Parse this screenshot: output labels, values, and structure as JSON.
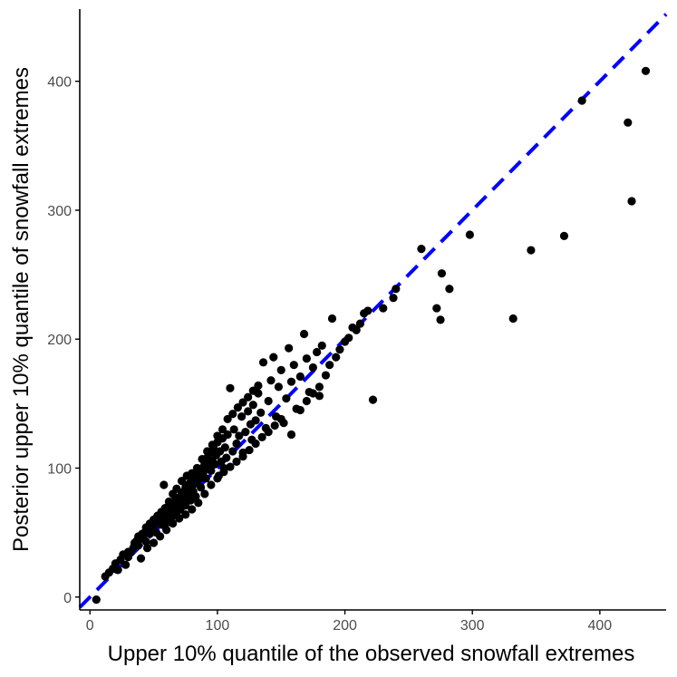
{
  "colors": {
    "points": "#000000",
    "reference_line": "#0000ff",
    "axis": "#000000",
    "tick_text": "#4d4d4d",
    "background": "#ffffff"
  },
  "chart_data": {
    "type": "scatter",
    "title": "",
    "xlabel": "Upper 10% quantile of the observed snowfall extremes",
    "ylabel": "Posterior upper 10% quantile of snowfall extremes",
    "xlim": [
      -8,
      452
    ],
    "ylim": [
      -10,
      456
    ],
    "xticks": [
      0,
      100,
      200,
      300,
      400
    ],
    "yticks": [
      0,
      100,
      200,
      300,
      400
    ],
    "grid": false,
    "legend": "none",
    "reference_line": {
      "slope": 1,
      "intercept": 0,
      "style": "dashed",
      "color": "blue"
    },
    "series": [
      {
        "points": [
          [
            12,
            16
          ],
          [
            15,
            19
          ],
          [
            18,
            22
          ],
          [
            20,
            26
          ],
          [
            22,
            21
          ],
          [
            24,
            29
          ],
          [
            26,
            33
          ],
          [
            28,
            25
          ],
          [
            30,
            31
          ],
          [
            32,
            35
          ],
          [
            34,
            38
          ],
          [
            35,
            41
          ],
          [
            37,
            44
          ],
          [
            38,
            40
          ],
          [
            40,
            47
          ],
          [
            42,
            45
          ],
          [
            43,
            50
          ],
          [
            44,
            43
          ],
          [
            46,
            52
          ],
          [
            47,
            49
          ],
          [
            48,
            55
          ],
          [
            50,
            53
          ],
          [
            51,
            58
          ],
          [
            52,
            50
          ],
          [
            54,
            60
          ],
          [
            55,
            57
          ],
          [
            56,
            63
          ],
          [
            57,
            56
          ],
          [
            58,
            61
          ],
          [
            60,
            66
          ],
          [
            61,
            58
          ],
          [
            62,
            64
          ],
          [
            63,
            70
          ],
          [
            64,
            62
          ],
          [
            65,
            67
          ],
          [
            66,
            73
          ],
          [
            67,
            69
          ],
          [
            68,
            65
          ],
          [
            69,
            76
          ],
          [
            70,
            72
          ],
          [
            71,
            68
          ],
          [
            72,
            78
          ],
          [
            73,
            74
          ],
          [
            74,
            81
          ],
          [
            75,
            71
          ],
          [
            76,
            77
          ],
          [
            77,
            84
          ],
          [
            78,
            80
          ],
          [
            79,
            75
          ],
          [
            80,
            86
          ],
          [
            81,
            82
          ],
          [
            82,
            90
          ],
          [
            83,
            78
          ],
          [
            84,
            88
          ],
          [
            85,
            95
          ],
          [
            86,
            92
          ],
          [
            87,
            85
          ],
          [
            88,
            100
          ],
          [
            89,
            97
          ],
          [
            90,
            104
          ],
          [
            91,
            92
          ],
          [
            92,
            108
          ],
          [
            93,
            101
          ],
          [
            94,
            112
          ],
          [
            95,
            98
          ],
          [
            96,
            106
          ],
          [
            97,
            115
          ],
          [
            98,
            103
          ],
          [
            99,
            110
          ],
          [
            100,
            120
          ],
          [
            101,
            94
          ],
          [
            102,
            113
          ],
          [
            103,
            105
          ],
          [
            104,
            123
          ],
          [
            105,
            100
          ],
          [
            106,
            116
          ],
          [
            107,
            108
          ],
          [
            108,
            126
          ],
          [
            110,
            162
          ],
          [
            112,
            113
          ],
          [
            113,
            130
          ],
          [
            115,
            119
          ],
          [
            117,
            125
          ],
          [
            119,
            140
          ],
          [
            120,
            112
          ],
          [
            122,
            128
          ],
          [
            124,
            144
          ],
          [
            126,
            134
          ],
          [
            127,
            122
          ],
          [
            128,
            149
          ],
          [
            130,
            137
          ],
          [
            132,
            158
          ],
          [
            134,
            143
          ],
          [
            136,
            182
          ],
          [
            138,
            131
          ],
          [
            140,
            152
          ],
          [
            142,
            168
          ],
          [
            144,
            186
          ],
          [
            146,
            140
          ],
          [
            148,
            163
          ],
          [
            150,
            176
          ],
          [
            152,
            135
          ],
          [
            154,
            154
          ],
          [
            156,
            193
          ],
          [
            158,
            167
          ],
          [
            160,
            180
          ],
          [
            162,
            146
          ],
          [
            165,
            171
          ],
          [
            168,
            204
          ],
          [
            170,
            185
          ],
          [
            172,
            159
          ],
          [
            175,
            178
          ],
          [
            178,
            190
          ],
          [
            180,
            156
          ],
          [
            182,
            195
          ],
          [
            185,
            172
          ],
          [
            188,
            180
          ],
          [
            190,
            216
          ],
          [
            193,
            186
          ],
          [
            196,
            192
          ],
          [
            200,
            198
          ],
          [
            203,
            201
          ],
          [
            206,
            209
          ],
          [
            209,
            207
          ],
          [
            212,
            212
          ],
          [
            215,
            220
          ],
          [
            218,
            222
          ],
          [
            222,
            153
          ],
          [
            230,
            224
          ],
          [
            238,
            232
          ],
          [
            240,
            239
          ],
          [
            260,
            270
          ],
          [
            272,
            224
          ],
          [
            275,
            215
          ],
          [
            276,
            251
          ],
          [
            282,
            239
          ],
          [
            298,
            281
          ],
          [
            332,
            216
          ],
          [
            346,
            269
          ],
          [
            372,
            280
          ],
          [
            386,
            385
          ],
          [
            422,
            368
          ],
          [
            425,
            307
          ],
          [
            436,
            408
          ],
          [
            5,
            -2
          ],
          [
            30,
            35
          ],
          [
            40,
            30
          ],
          [
            45,
            38
          ],
          [
            50,
            42
          ],
          [
            55,
            47
          ],
          [
            60,
            52
          ],
          [
            65,
            57
          ],
          [
            70,
            61
          ],
          [
            75,
            64
          ],
          [
            80,
            68
          ],
          [
            85,
            73
          ],
          [
            90,
            80
          ],
          [
            95,
            87
          ],
          [
            100,
            92
          ],
          [
            105,
            97
          ],
          [
            110,
            101
          ],
          [
            115,
            105
          ],
          [
            120,
            109
          ],
          [
            125,
            114
          ],
          [
            130,
            119
          ],
          [
            135,
            124
          ],
          [
            140,
            128
          ],
          [
            145,
            133
          ],
          [
            150,
            138
          ],
          [
            158,
            126
          ],
          [
            165,
            145
          ],
          [
            170,
            152
          ],
          [
            175,
            158
          ],
          [
            180,
            163
          ],
          [
            58,
            87
          ],
          [
            62,
            74
          ],
          [
            65,
            80
          ],
          [
            68,
            84
          ],
          [
            72,
            90
          ],
          [
            76,
            94
          ],
          [
            80,
            96
          ],
          [
            84,
            100
          ],
          [
            88,
            107
          ],
          [
            92,
            113
          ],
          [
            96,
            118
          ],
          [
            100,
            125
          ],
          [
            104,
            130
          ],
          [
            108,
            138
          ],
          [
            112,
            142
          ],
          [
            116,
            147
          ],
          [
            120,
            151
          ],
          [
            124,
            155
          ],
          [
            128,
            160
          ],
          [
            132,
            164
          ],
          [
            35,
            42
          ],
          [
            38,
            47
          ],
          [
            41,
            49
          ],
          [
            44,
            54
          ],
          [
            47,
            57
          ],
          [
            50,
            60
          ],
          [
            53,
            63
          ],
          [
            56,
            66
          ],
          [
            59,
            69
          ],
          [
            62,
            71
          ],
          [
            66,
            74
          ],
          [
            69,
            77
          ],
          [
            72,
            81
          ],
          [
            75,
            85
          ],
          [
            78,
            88
          ],
          [
            81,
            91
          ],
          [
            84,
            94
          ],
          [
            87,
            98
          ],
          [
            90,
            101
          ],
          [
            93,
            104
          ]
        ]
      }
    ]
  }
}
